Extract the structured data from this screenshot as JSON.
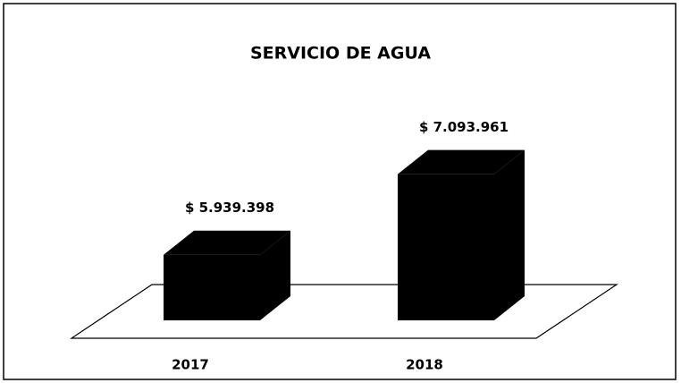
{
  "chart_data": {
    "type": "bar3d",
    "title": "SERVICIO DE AGUA",
    "categories": [
      "2017",
      "2018"
    ],
    "values": [
      5939398,
      7093961
    ],
    "value_labels": [
      "$ 5.939.398",
      "$ 7.093.961"
    ],
    "color": "#000000",
    "ylim": [
      5000000,
      7500000
    ]
  }
}
